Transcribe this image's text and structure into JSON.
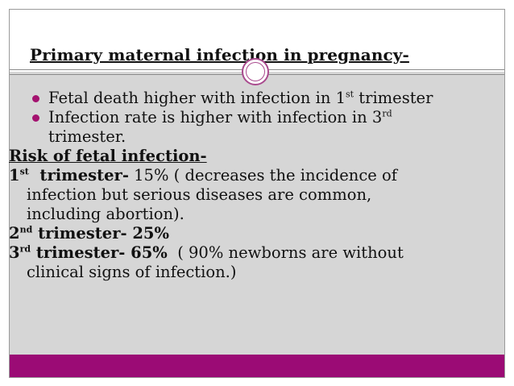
{
  "slide": {
    "title": "Primary maternal infection in pregnancy-",
    "accent_color": "#9b0b75",
    "body_bg": "#d6d6d6",
    "bullets": [
      {
        "pre": "Fetal death higher with infection in 1",
        "sup": "st",
        "post": " trimester"
      },
      {
        "pre": "Infection rate is higher with infection in 3",
        "sup": "rd",
        "post": "",
        "cont": "trimester."
      }
    ],
    "risk_heading": "Risk of fetal infection-",
    "risk": [
      {
        "num": "1",
        "sup": "st",
        "label": "  trimester-",
        "value": " 15% ( decreases the incidence of",
        "cont": [
          "infection but serious diseases are common,",
          "including abortion)."
        ]
      },
      {
        "num": "2",
        "sup": "nd",
        "label": " trimester- 25%",
        "value": "",
        "cont": []
      },
      {
        "num": "3",
        "sup": "rd",
        "label": " trimester- 65%",
        "value": "  ( 90% newborns are without",
        "cont": [
          "clinical signs of infection.)"
        ]
      }
    ]
  }
}
